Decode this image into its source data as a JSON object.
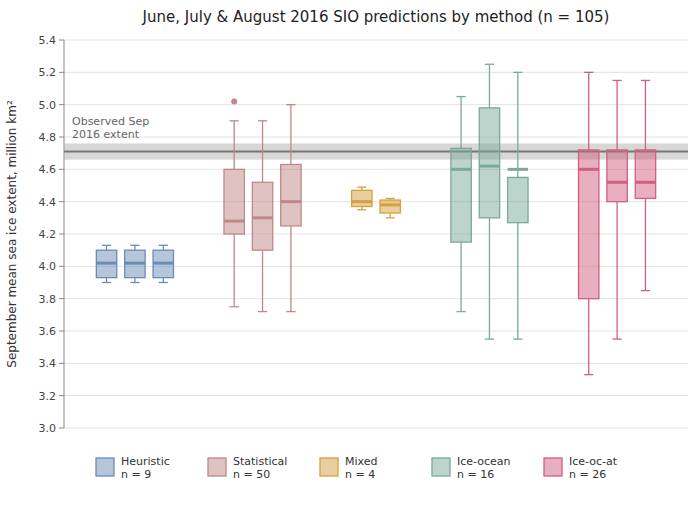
{
  "chart_data": {
    "type": "box",
    "title": "June, July & August 2016 SIO predictions by method (n = 105)",
    "y_label": "September mean sea ice extent, million km²",
    "ylim": [
      3.0,
      5.4
    ],
    "yticks": [
      {
        "value": 3.0,
        "label": "3.0"
      },
      {
        "value": 3.2,
        "label": "3.2"
      },
      {
        "value": 3.4,
        "label": "3.4"
      },
      {
        "value": 3.6,
        "label": "3.6"
      },
      {
        "value": 3.8,
        "label": "3.8"
      },
      {
        "value": 4.0,
        "label": "4.0"
      },
      {
        "value": 4.2,
        "label": "4.2"
      },
      {
        "value": 4.4,
        "label": "4.4"
      },
      {
        "value": 4.6,
        "label": "4.6"
      },
      {
        "value": 4.8,
        "label": "4.8"
      },
      {
        "value": 5.0,
        "label": "5.0"
      },
      {
        "value": 5.2,
        "label": "5.2"
      },
      {
        "value": 5.4,
        "label": "5.4"
      }
    ],
    "grid": true,
    "legend": "bottom",
    "observed": {
      "value": 4.71,
      "band": [
        4.66,
        4.76
      ],
      "label": "Observed Sep\n2016 extent"
    },
    "series": [
      {
        "name": "Heuristic\nn = 9",
        "color": "#6b8db5",
        "values": [
          {
            "whislo": 3.9,
            "q1": 3.93,
            "med": 4.02,
            "q3": 4.1,
            "whishi": 4.13,
            "fliers": []
          },
          {
            "whislo": 3.9,
            "q1": 3.93,
            "med": 4.02,
            "q3": 4.1,
            "whishi": 4.13,
            "fliers": []
          },
          {
            "whislo": 3.9,
            "q1": 3.93,
            "med": 4.02,
            "q3": 4.1,
            "whishi": 4.13,
            "fliers": []
          }
        ]
      },
      {
        "name": "Statistical\nn = 50",
        "color": "#c08888",
        "values": [
          {
            "whislo": 3.75,
            "q1": 4.2,
            "med": 4.28,
            "q3": 4.6,
            "whishi": 4.9,
            "fliers": [
              5.02
            ]
          },
          {
            "whislo": 3.72,
            "q1": 4.1,
            "med": 4.3,
            "q3": 4.52,
            "whishi": 4.9,
            "fliers": []
          },
          {
            "whislo": 3.72,
            "q1": 4.25,
            "med": 4.4,
            "q3": 4.63,
            "whishi": 5.0,
            "fliers": []
          }
        ]
      },
      {
        "name": "Mixed\nn = 4",
        "color": "#d4a040",
        "values": [
          {
            "whislo": 4.35,
            "q1": 4.37,
            "med": 4.4,
            "q3": 4.47,
            "whishi": 4.49,
            "fliers": []
          },
          {
            "whislo": 4.3,
            "q1": 4.33,
            "med": 4.38,
            "q3": 4.41,
            "whishi": 4.42,
            "fliers": []
          }
        ]
      },
      {
        "name": "Ice-ocean\nn = 16",
        "color": "#7aaa98",
        "values": [
          {
            "whislo": 3.72,
            "q1": 4.15,
            "med": 4.6,
            "q3": 4.73,
            "whishi": 5.05,
            "fliers": []
          },
          {
            "whislo": 3.55,
            "q1": 4.3,
            "med": 4.62,
            "q3": 4.98,
            "whishi": 5.25,
            "fliers": []
          },
          {
            "whislo": 3.55,
            "q1": 4.27,
            "med": 4.6,
            "q3": 4.55,
            "whishi": 5.2,
            "fliers": []
          }
        ]
      },
      {
        "name": "Ice-oc-at\nn = 26",
        "color": "#d06080",
        "values": [
          {
            "whislo": 3.33,
            "q1": 3.8,
            "med": 4.6,
            "q3": 4.72,
            "whishi": 5.2,
            "fliers": []
          },
          {
            "whislo": 3.55,
            "q1": 4.4,
            "med": 4.52,
            "q3": 4.72,
            "whishi": 5.15,
            "fliers": []
          },
          {
            "whislo": 3.85,
            "q1": 4.42,
            "med": 4.52,
            "q3": 4.72,
            "whishi": 5.15,
            "fliers": []
          }
        ]
      }
    ]
  }
}
